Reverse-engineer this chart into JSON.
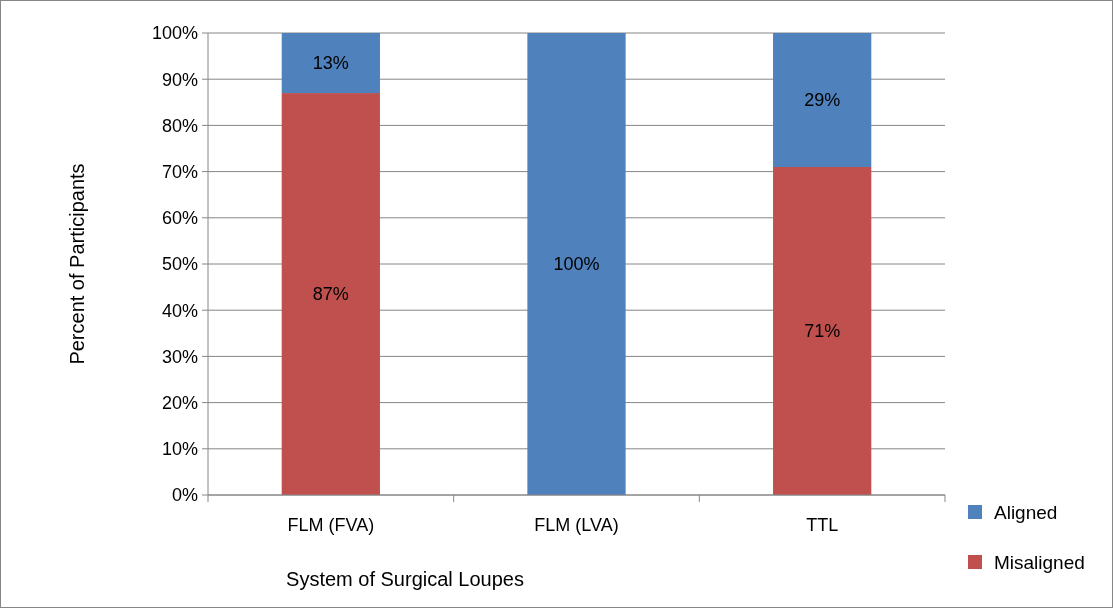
{
  "chart_data": {
    "type": "bar",
    "stacked": true,
    "xlabel": "System of Surgical Loupes",
    "ylabel": "Percent of Participants",
    "categories": [
      "FLM (FVA)",
      "FLM (LVA)",
      "TTL"
    ],
    "series": [
      {
        "name": "Misaligned",
        "color": "#c0504d",
        "values": [
          87,
          0,
          71
        ],
        "value_labels": [
          "87%",
          null,
          "71%"
        ]
      },
      {
        "name": "Aligned",
        "color": "#4f81bd",
        "values": [
          13,
          100,
          29
        ],
        "value_labels": [
          "13%",
          "100%",
          "29%"
        ]
      }
    ],
    "ylim": [
      0,
      100
    ],
    "yticks": [
      {
        "value": 0,
        "label": "0%"
      },
      {
        "value": 10,
        "label": "10%"
      },
      {
        "value": 20,
        "label": "20%"
      },
      {
        "value": 30,
        "label": "30%"
      },
      {
        "value": 40,
        "label": "40%"
      },
      {
        "value": 50,
        "label": "50%"
      },
      {
        "value": 60,
        "label": "60%"
      },
      {
        "value": 70,
        "label": "70%"
      },
      {
        "value": 80,
        "label": "80%"
      },
      {
        "value": 90,
        "label": "90%"
      },
      {
        "value": 100,
        "label": "100%"
      }
    ],
    "grid": "y",
    "legend": "bottom right"
  }
}
